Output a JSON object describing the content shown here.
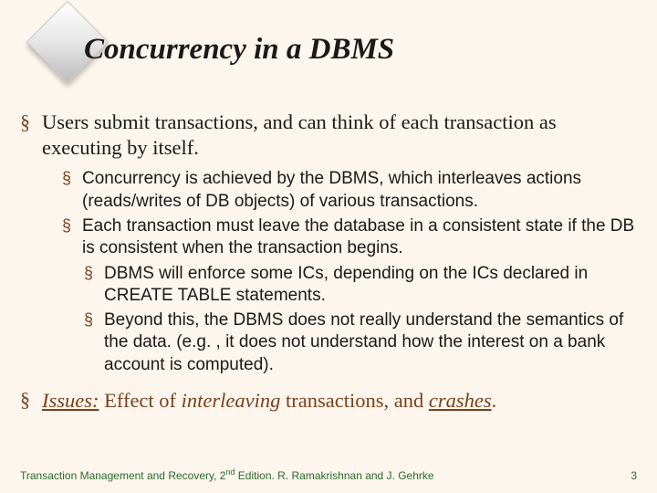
{
  "colors": {
    "background": "#fdf6ee",
    "bullet_mark": "#7a3f1a",
    "body_text": "#1a1a1a",
    "footer_text": "#2a6a2a",
    "issues_brown": "#7a3f1a"
  },
  "title": "Concurrency in a DBMS",
  "bullets": {
    "b1": "Users submit transactions, and can think of each transaction as executing by itself.",
    "b2a": "Concurrency is achieved by the DBMS, which interleaves actions (reads/writes of DB objects) of various transactions.",
    "b2b": "Each transaction must leave the database in a consistent state if the DB is consistent when the transaction begins.",
    "b3a": "DBMS will enforce some ICs, depending on the ICs declared in CREATE TABLE statements.",
    "b3b": "Beyond this, the DBMS does not really understand the semantics of the data.  (e.g. , it does not understand how the interest on a bank account is computed)."
  },
  "issues": {
    "label": "Issues:",
    "text_before": "  Effect of ",
    "interleaving": "interleaving",
    "text_mid": " transactions, and ",
    "crashes": "crashes",
    "text_after": "."
  },
  "footer": {
    "left_prefix": "Transaction Management and Recovery, 2",
    "left_super": "nd",
    "left_suffix": " Edition. R. Ramakrishnan and J. Gehrke",
    "page": "3"
  },
  "bullet_glyph": "§"
}
